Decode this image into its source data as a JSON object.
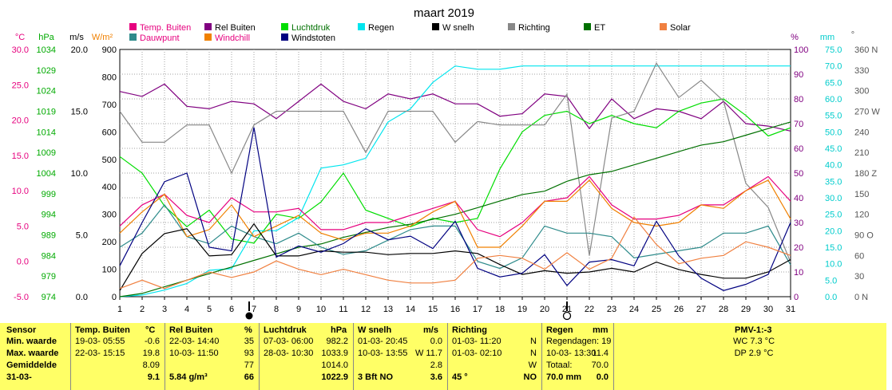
{
  "title": "maart 2019",
  "legend": [
    {
      "label": "Temp. Buiten",
      "color": "#e6007e"
    },
    {
      "label": "Rel Buiten",
      "color": "#800080"
    },
    {
      "label": "Luchtdruk",
      "color": "#00dd00"
    },
    {
      "label": "Regen",
      "color": "#00e5ee"
    },
    {
      "label": "W snelh",
      "color": "#000000"
    },
    {
      "label": "Richting",
      "color": "#888888"
    },
    {
      "label": "ET",
      "color": "#007000"
    },
    {
      "label": "Solar",
      "color": "#f08040"
    },
    {
      "label": "Dauwpunt",
      "color": "#2e8b8b"
    },
    {
      "label": "Windchill",
      "color": "#f08000"
    },
    {
      "label": "Windstoten",
      "color": "#000080"
    }
  ],
  "axis_units": {
    "temp": "°C",
    "hpa": "hPa",
    "ms": "m/s",
    "wm2": "W/m²",
    "pct": "%",
    "mm": "mm",
    "deg": "°"
  },
  "ticks": {
    "temp": [
      "30.0",
      "25.0",
      "20.0",
      "15.0",
      "10.0",
      "5.0",
      "0.0",
      "-5.0"
    ],
    "hpa": [
      "1034",
      "1029",
      "1024",
      "1019",
      "1014",
      "1009",
      "1004",
      "999",
      "994",
      "989",
      "984",
      "979",
      "974"
    ],
    "ms": [
      "20.0",
      "15.0",
      "10.0",
      "5.0",
      "0.0"
    ],
    "wm2": [
      "900",
      "800",
      "700",
      "600",
      "500",
      "400",
      "300",
      "200",
      "100",
      "0"
    ],
    "pct": [
      "100",
      "90",
      "80",
      "70",
      "60",
      "50",
      "40",
      "30",
      "20",
      "10",
      "0"
    ],
    "mm": [
      "75.0",
      "70.0",
      "65.0",
      "60.0",
      "55.0",
      "50.0",
      "45.0",
      "40.0",
      "35.0",
      "30.0",
      "25.0",
      "20.0",
      "15.0",
      "10.0",
      "5.0",
      "0.0"
    ],
    "deg": [
      "360 N",
      "330",
      "300",
      "270 W",
      "240",
      "210",
      "180 Z",
      "150",
      "120",
      "90 O",
      "60",
      "30",
      "0 N"
    ],
    "x": [
      "1",
      "2",
      "3",
      "4",
      "5",
      "6",
      "7",
      "8",
      "9",
      "10",
      "11",
      "12",
      "13",
      "14",
      "15",
      "16",
      "17",
      "18",
      "19",
      "20",
      "21",
      "22",
      "23",
      "24",
      "25",
      "26",
      "27",
      "28",
      "29",
      "30",
      "31"
    ]
  },
  "chart_data": {
    "type": "line",
    "title": "maart 2019",
    "x": [
      1,
      2,
      3,
      4,
      5,
      6,
      7,
      8,
      9,
      10,
      11,
      12,
      13,
      14,
      15,
      16,
      17,
      18,
      19,
      20,
      21,
      22,
      23,
      24,
      25,
      26,
      27,
      28,
      29,
      30,
      31
    ],
    "xlim": [
      1,
      31
    ],
    "grid": true,
    "axes": {
      "temp": {
        "unit": "°C",
        "range": [
          -5,
          30
        ]
      },
      "pressure": {
        "unit": "hPa",
        "range": [
          974,
          1034
        ]
      },
      "wind": {
        "unit": "m/s",
        "range": [
          0,
          20
        ]
      },
      "solar": {
        "unit": "W/m²",
        "range": [
          0,
          900
        ]
      },
      "humidity": {
        "unit": "%",
        "range": [
          0,
          100
        ]
      },
      "rain": {
        "unit": "mm",
        "range": [
          0,
          75
        ]
      },
      "direction": {
        "unit": "°",
        "range": [
          0,
          360
        ]
      }
    },
    "series": [
      {
        "name": "Rel Buiten",
        "axis": "humidity",
        "color": "#800080",
        "values": [
          83,
          81,
          86,
          77,
          76,
          79,
          78,
          72,
          79,
          86,
          79,
          76,
          82,
          80,
          82,
          78,
          78,
          73,
          74,
          82,
          81,
          68,
          80,
          72,
          76,
          75,
          72,
          79,
          70,
          69,
          67
        ]
      },
      {
        "name": "Luchtdruk",
        "axis": "pressure",
        "color": "#00dd00",
        "values": [
          1008,
          1004,
          996,
          991,
          995,
          988,
          987,
          994,
          993,
          997,
          1004,
          995,
          993,
          991,
          993,
          992,
          993,
          1005,
          1014,
          1018,
          1019,
          1016,
          1018,
          1016,
          1015,
          1019,
          1021,
          1022,
          1018,
          1013,
          1015
        ]
      },
      {
        "name": "Regen",
        "axis": "rain",
        "color": "#00e5ee",
        "values": [
          0,
          0.5,
          2,
          4,
          8,
          8.5,
          20,
          20,
          24,
          39,
          40,
          42,
          53,
          57,
          65,
          70,
          69,
          69,
          70,
          70,
          70,
          70,
          70,
          70,
          70,
          70,
          70,
          70,
          70,
          70,
          70
        ]
      },
      {
        "name": "Richting",
        "axis": "direction",
        "color": "#888888",
        "values": [
          270,
          225,
          225,
          250,
          250,
          180,
          250,
          270,
          270,
          270,
          270,
          210,
          270,
          270,
          270,
          225,
          255,
          250,
          250,
          250,
          295,
          60,
          260,
          270,
          340,
          290,
          315,
          285,
          165,
          130,
          50
        ]
      },
      {
        "name": "ET",
        "axis": "rain",
        "color": "#007000",
        "values": [
          0,
          1,
          3,
          5,
          7,
          9,
          11,
          13,
          15,
          16,
          18,
          19.5,
          21,
          22,
          23.5,
          25,
          27,
          29,
          31,
          32,
          35,
          37,
          38,
          40,
          42,
          44,
          46,
          47,
          49,
          51,
          53
        ]
      },
      {
        "name": "Temp. Buiten",
        "axis": "temp",
        "color": "#e6007e",
        "values": [
          5,
          8,
          9.5,
          6.5,
          5.5,
          9,
          7,
          7,
          7.5,
          4.5,
          4.5,
          5.5,
          5.5,
          6.5,
          7.5,
          8.5,
          4.5,
          3.5,
          5.5,
          8.5,
          9,
          12,
          8,
          6,
          6,
          6.5,
          8,
          8,
          10,
          12,
          8.5
        ]
      },
      {
        "name": "Dauwpunt",
        "axis": "temp",
        "color": "#2e8b8b",
        "values": [
          2,
          4,
          8,
          3.5,
          2.5,
          5,
          3.5,
          2.5,
          4,
          2,
          1,
          1.5,
          3,
          4.5,
          5,
          5,
          0,
          -1,
          0.5,
          5,
          4,
          4,
          3.5,
          0.5,
          1,
          1.5,
          2,
          4,
          4,
          5,
          -0.5
        ]
      },
      {
        "name": "Windchill",
        "axis": "temp",
        "color": "#f08000",
        "values": [
          4,
          7,
          9.5,
          3.5,
          4.5,
          8,
          3.5,
          5,
          6.5,
          4,
          3,
          4,
          4,
          5,
          7,
          8.5,
          2,
          2,
          5,
          8.5,
          8.5,
          11.5,
          7.5,
          5.5,
          5,
          5.5,
          8,
          7.5,
          10,
          11.5,
          6
        ]
      },
      {
        "name": "W snelh",
        "axis": "wind",
        "color": "#000000",
        "values": [
          0.5,
          3.5,
          5.1,
          5.5,
          3.3,
          3.4,
          5.9,
          3.3,
          3.3,
          3.7,
          3.6,
          3.6,
          3.4,
          3.5,
          3.5,
          3.7,
          3.5,
          2.6,
          1.8,
          2.1,
          1.9,
          2.0,
          2.3,
          2.0,
          2.8,
          2.2,
          1.8,
          1.5,
          1.5,
          2.0,
          3.0
        ]
      },
      {
        "name": "Windstoten",
        "axis": "wind",
        "color": "#000080",
        "values": [
          2.5,
          6,
          9.3,
          10,
          4,
          3.7,
          13.7,
          3.2,
          4.1,
          3.6,
          4.3,
          5.5,
          4.6,
          4.9,
          3.9,
          6.1,
          2.3,
          1.6,
          1.9,
          3.4,
          0.9,
          2.8,
          3.0,
          2.5,
          6.1,
          3.3,
          1.5,
          0.5,
          1.0,
          1.8,
          6.0
        ]
      },
      {
        "name": "Solar",
        "axis": "solar",
        "color": "#f08040",
        "values": [
          30,
          60,
          30,
          60,
          90,
          70,
          90,
          130,
          100,
          80,
          100,
          80,
          60,
          50,
          50,
          60,
          140,
          150,
          140,
          100,
          160,
          100,
          140,
          290,
          190,
          120,
          140,
          150,
          200,
          180,
          150
        ]
      }
    ]
  },
  "stats": {
    "headers": {
      "sensor": "Sensor",
      "temp": "Temp. Buiten",
      "temp_unit": "°C",
      "rel": "Rel Buiten",
      "rel_unit": "%",
      "druk": "Luchtdruk",
      "druk_unit": "hPa",
      "wind": "W snelh",
      "wind_unit": "m/s",
      "richting": "Richting",
      "regen": "Regen",
      "regen_unit": "mm",
      "pmv": "PMV-1:-3"
    },
    "rows": [
      {
        "label": "Min. waarde",
        "temp_time": "19-03- 05:55",
        "temp_val": "-0.6",
        "rel_time": "22-03- 14:40",
        "rel_val": "35",
        "druk_time": "07-03- 06:00",
        "druk_val": "982.2",
        "wind_time": "01-03- 20:45",
        "wind_val": "0.0",
        "dir_time": "01-03- 11:20",
        "dir_val": "N",
        "regen_a": "Regendagen: 19",
        "regen_b": "",
        "pmv": "WC 7.3 °C"
      },
      {
        "label": "Max. waarde",
        "temp_time": "22-03- 15:15",
        "temp_val": "19.8",
        "rel_time": "10-03- 11:50",
        "rel_val": "93",
        "druk_time": "28-03- 10:30",
        "druk_val": "1033.9",
        "wind_time": "10-03- 13:55",
        "wind_val": "W 11.7",
        "dir_time": "01-03- 02:10",
        "dir_val": "N",
        "regen_a": "10-03- 13:30",
        "regen_b": "11.4",
        "pmv": "DP 2.9 °C"
      },
      {
        "label": "Gemiddelde",
        "temp_time": "",
        "temp_val": "8.09",
        "rel_time": "",
        "rel_val": "77",
        "druk_time": "",
        "druk_val": "1014.0",
        "wind_time": "",
        "wind_val": "2.8",
        "dir_time": "",
        "dir_val": "W",
        "regen_a": "Totaal:",
        "regen_b": "70.0",
        "pmv": ""
      },
      {
        "label": "31-03-",
        "temp_time": "",
        "temp_val": "9.1",
        "rel_time": "5.84 g/m³",
        "rel_val": "66",
        "druk_time": "",
        "druk_val": "1022.9",
        "wind_time": "3 Bft NO",
        "wind_val": "3.6",
        "dir_time": "45 °",
        "dir_val": "NO",
        "regen_a": "70.0 mm",
        "regen_b": "0.0",
        "pmv": ""
      }
    ]
  }
}
